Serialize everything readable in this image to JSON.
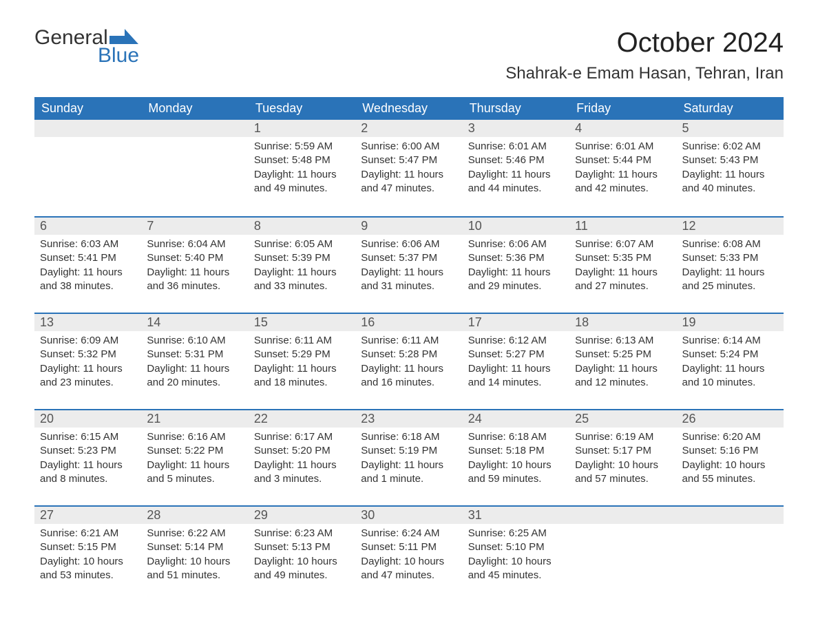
{
  "brand": {
    "word1": "General",
    "word2": "Blue",
    "icon_color": "#2a73b8",
    "text_color": "#333333"
  },
  "title": {
    "month": "October 2024",
    "location": "Shahrak-e Emam Hasan, Tehran, Iran"
  },
  "style": {
    "header_bg": "#2a73b8",
    "header_fg": "#ffffff",
    "daynum_bg": "#ececec",
    "row_border": "#2a73b8",
    "body_fg": "#333333",
    "page_bg": "#ffffff",
    "font_family": "Segoe UI, Arial, Helvetica, sans-serif",
    "month_title_fontsize": 40,
    "location_fontsize": 24,
    "weekday_fontsize": 18,
    "daynum_fontsize": 18,
    "body_fontsize": 15
  },
  "weekdays": [
    "Sunday",
    "Monday",
    "Tuesday",
    "Wednesday",
    "Thursday",
    "Friday",
    "Saturday"
  ],
  "weeks": [
    [
      {
        "day": "",
        "sunrise": "",
        "sunset": "",
        "daylight": ""
      },
      {
        "day": "",
        "sunrise": "",
        "sunset": "",
        "daylight": ""
      },
      {
        "day": "1",
        "sunrise": "Sunrise: 5:59 AM",
        "sunset": "Sunset: 5:48 PM",
        "daylight": "Daylight: 11 hours and 49 minutes."
      },
      {
        "day": "2",
        "sunrise": "Sunrise: 6:00 AM",
        "sunset": "Sunset: 5:47 PM",
        "daylight": "Daylight: 11 hours and 47 minutes."
      },
      {
        "day": "3",
        "sunrise": "Sunrise: 6:01 AM",
        "sunset": "Sunset: 5:46 PM",
        "daylight": "Daylight: 11 hours and 44 minutes."
      },
      {
        "day": "4",
        "sunrise": "Sunrise: 6:01 AM",
        "sunset": "Sunset: 5:44 PM",
        "daylight": "Daylight: 11 hours and 42 minutes."
      },
      {
        "day": "5",
        "sunrise": "Sunrise: 6:02 AM",
        "sunset": "Sunset: 5:43 PM",
        "daylight": "Daylight: 11 hours and 40 minutes."
      }
    ],
    [
      {
        "day": "6",
        "sunrise": "Sunrise: 6:03 AM",
        "sunset": "Sunset: 5:41 PM",
        "daylight": "Daylight: 11 hours and 38 minutes."
      },
      {
        "day": "7",
        "sunrise": "Sunrise: 6:04 AM",
        "sunset": "Sunset: 5:40 PM",
        "daylight": "Daylight: 11 hours and 36 minutes."
      },
      {
        "day": "8",
        "sunrise": "Sunrise: 6:05 AM",
        "sunset": "Sunset: 5:39 PM",
        "daylight": "Daylight: 11 hours and 33 minutes."
      },
      {
        "day": "9",
        "sunrise": "Sunrise: 6:06 AM",
        "sunset": "Sunset: 5:37 PM",
        "daylight": "Daylight: 11 hours and 31 minutes."
      },
      {
        "day": "10",
        "sunrise": "Sunrise: 6:06 AM",
        "sunset": "Sunset: 5:36 PM",
        "daylight": "Daylight: 11 hours and 29 minutes."
      },
      {
        "day": "11",
        "sunrise": "Sunrise: 6:07 AM",
        "sunset": "Sunset: 5:35 PM",
        "daylight": "Daylight: 11 hours and 27 minutes."
      },
      {
        "day": "12",
        "sunrise": "Sunrise: 6:08 AM",
        "sunset": "Sunset: 5:33 PM",
        "daylight": "Daylight: 11 hours and 25 minutes."
      }
    ],
    [
      {
        "day": "13",
        "sunrise": "Sunrise: 6:09 AM",
        "sunset": "Sunset: 5:32 PM",
        "daylight": "Daylight: 11 hours and 23 minutes."
      },
      {
        "day": "14",
        "sunrise": "Sunrise: 6:10 AM",
        "sunset": "Sunset: 5:31 PM",
        "daylight": "Daylight: 11 hours and 20 minutes."
      },
      {
        "day": "15",
        "sunrise": "Sunrise: 6:11 AM",
        "sunset": "Sunset: 5:29 PM",
        "daylight": "Daylight: 11 hours and 18 minutes."
      },
      {
        "day": "16",
        "sunrise": "Sunrise: 6:11 AM",
        "sunset": "Sunset: 5:28 PM",
        "daylight": "Daylight: 11 hours and 16 minutes."
      },
      {
        "day": "17",
        "sunrise": "Sunrise: 6:12 AM",
        "sunset": "Sunset: 5:27 PM",
        "daylight": "Daylight: 11 hours and 14 minutes."
      },
      {
        "day": "18",
        "sunrise": "Sunrise: 6:13 AM",
        "sunset": "Sunset: 5:25 PM",
        "daylight": "Daylight: 11 hours and 12 minutes."
      },
      {
        "day": "19",
        "sunrise": "Sunrise: 6:14 AM",
        "sunset": "Sunset: 5:24 PM",
        "daylight": "Daylight: 11 hours and 10 minutes."
      }
    ],
    [
      {
        "day": "20",
        "sunrise": "Sunrise: 6:15 AM",
        "sunset": "Sunset: 5:23 PM",
        "daylight": "Daylight: 11 hours and 8 minutes."
      },
      {
        "day": "21",
        "sunrise": "Sunrise: 6:16 AM",
        "sunset": "Sunset: 5:22 PM",
        "daylight": "Daylight: 11 hours and 5 minutes."
      },
      {
        "day": "22",
        "sunrise": "Sunrise: 6:17 AM",
        "sunset": "Sunset: 5:20 PM",
        "daylight": "Daylight: 11 hours and 3 minutes."
      },
      {
        "day": "23",
        "sunrise": "Sunrise: 6:18 AM",
        "sunset": "Sunset: 5:19 PM",
        "daylight": "Daylight: 11 hours and 1 minute."
      },
      {
        "day": "24",
        "sunrise": "Sunrise: 6:18 AM",
        "sunset": "Sunset: 5:18 PM",
        "daylight": "Daylight: 10 hours and 59 minutes."
      },
      {
        "day": "25",
        "sunrise": "Sunrise: 6:19 AM",
        "sunset": "Sunset: 5:17 PM",
        "daylight": "Daylight: 10 hours and 57 minutes."
      },
      {
        "day": "26",
        "sunrise": "Sunrise: 6:20 AM",
        "sunset": "Sunset: 5:16 PM",
        "daylight": "Daylight: 10 hours and 55 minutes."
      }
    ],
    [
      {
        "day": "27",
        "sunrise": "Sunrise: 6:21 AM",
        "sunset": "Sunset: 5:15 PM",
        "daylight": "Daylight: 10 hours and 53 minutes."
      },
      {
        "day": "28",
        "sunrise": "Sunrise: 6:22 AM",
        "sunset": "Sunset: 5:14 PM",
        "daylight": "Daylight: 10 hours and 51 minutes."
      },
      {
        "day": "29",
        "sunrise": "Sunrise: 6:23 AM",
        "sunset": "Sunset: 5:13 PM",
        "daylight": "Daylight: 10 hours and 49 minutes."
      },
      {
        "day": "30",
        "sunrise": "Sunrise: 6:24 AM",
        "sunset": "Sunset: 5:11 PM",
        "daylight": "Daylight: 10 hours and 47 minutes."
      },
      {
        "day": "31",
        "sunrise": "Sunrise: 6:25 AM",
        "sunset": "Sunset: 5:10 PM",
        "daylight": "Daylight: 10 hours and 45 minutes."
      },
      {
        "day": "",
        "sunrise": "",
        "sunset": "",
        "daylight": ""
      },
      {
        "day": "",
        "sunrise": "",
        "sunset": "",
        "daylight": ""
      }
    ]
  ]
}
